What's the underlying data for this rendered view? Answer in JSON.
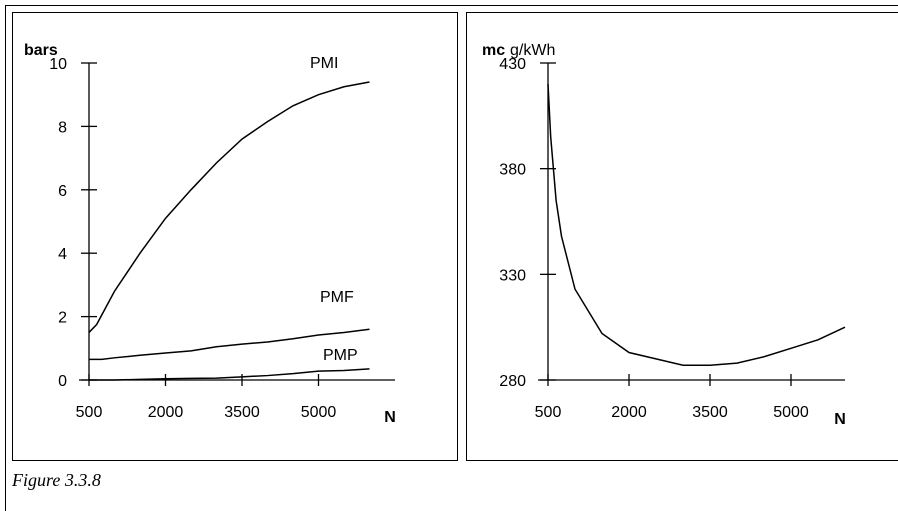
{
  "caption": "Figure 3.3.8",
  "chart_data": [
    {
      "type": "line",
      "ylabel": "bars",
      "xlabel": "N",
      "xlim": [
        500,
        6500
      ],
      "ylim": [
        0,
        10
      ],
      "xticks": [
        500,
        2000,
        3500,
        5000
      ],
      "yticks": [
        0,
        2,
        4,
        6,
        8,
        10
      ],
      "series": [
        {
          "name": "PMI",
          "x": [
            500,
            650,
            1000,
            1500,
            2000,
            2500,
            3000,
            3500,
            4000,
            4500,
            5000,
            5500,
            6000
          ],
          "y": [
            1.5,
            1.75,
            2.8,
            4.0,
            5.1,
            6.0,
            6.85,
            7.6,
            8.15,
            8.65,
            9.0,
            9.25,
            9.4
          ]
        },
        {
          "name": "PMF",
          "x": [
            500,
            750,
            1000,
            1500,
            2000,
            2500,
            3000,
            3500,
            4000,
            4500,
            5000,
            5500,
            6000
          ],
          "y": [
            0.65,
            0.65,
            0.7,
            0.78,
            0.85,
            0.92,
            1.05,
            1.13,
            1.2,
            1.3,
            1.42,
            1.5,
            1.6
          ]
        },
        {
          "name": "PMP",
          "x": [
            500,
            1000,
            1500,
            2000,
            2500,
            3000,
            3500,
            4000,
            4500,
            5000,
            5500,
            6000
          ],
          "y": [
            0.0,
            0.0,
            0.02,
            0.04,
            0.05,
            0.06,
            0.1,
            0.14,
            0.2,
            0.28,
            0.3,
            0.35
          ]
        }
      ]
    },
    {
      "type": "line",
      "ylabel": "mc",
      "yunit": "g/kWh",
      "xlabel": "N",
      "xlim": [
        500,
        6000
      ],
      "ylim": [
        280,
        430
      ],
      "xticks": [
        500,
        2000,
        3500,
        5000
      ],
      "yticks": [
        280,
        330,
        380,
        430
      ],
      "series": [
        {
          "name": "",
          "x": [
            500,
            550,
            650,
            750,
            1000,
            1500,
            2000,
            2500,
            3000,
            3500,
            4000,
            4500,
            5000,
            5500,
            6000
          ],
          "y": [
            420,
            395,
            365,
            348,
            323,
            302,
            293,
            290,
            287,
            287,
            288,
            291,
            295,
            299,
            305
          ]
        }
      ]
    }
  ]
}
